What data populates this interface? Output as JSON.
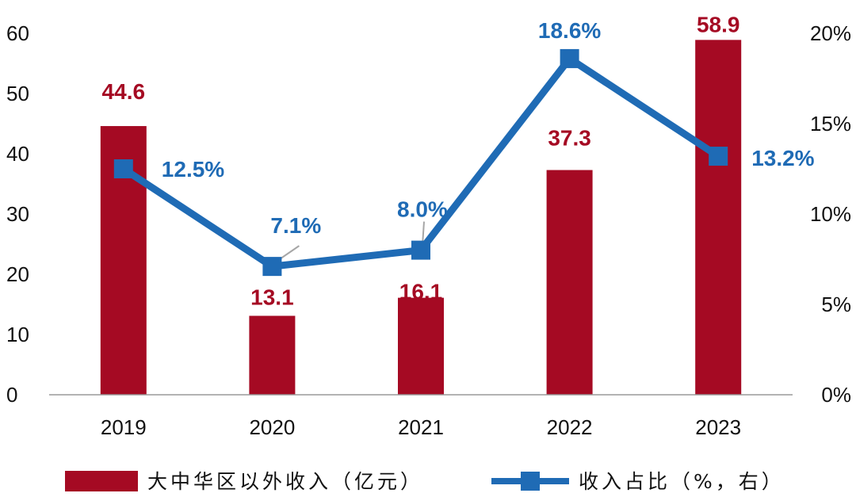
{
  "chart_data": {
    "type": "bar+line",
    "categories": [
      "2019",
      "2020",
      "2021",
      "2022",
      "2023"
    ],
    "series": [
      {
        "name": "大中华区以外收入（亿元）",
        "type": "bar",
        "axis": "left",
        "values": [
          44.6,
          13.1,
          16.1,
          37.3,
          58.9
        ],
        "labels": [
          "44.6",
          "13.1",
          "16.1",
          "37.3",
          "58.9"
        ],
        "color": "#A50A23"
      },
      {
        "name": "收入占比（%，右）",
        "type": "line",
        "axis": "right",
        "values": [
          12.5,
          7.1,
          8.0,
          18.6,
          13.2
        ],
        "labels": [
          "12.5%",
          "7.1%",
          "8.0%",
          "18.6%",
          "13.2%"
        ],
        "color": "#1F6BB5"
      }
    ],
    "y_left": {
      "ylim": [
        0,
        60
      ],
      "ticks": [
        "0",
        "10",
        "20",
        "30",
        "40",
        "50",
        "60"
      ]
    },
    "y_right": {
      "ylim": [
        0,
        20
      ],
      "ticks": [
        "0%",
        "5%",
        "10%",
        "15%",
        "20%"
      ]
    },
    "grid": false,
    "legend": "bottom"
  }
}
